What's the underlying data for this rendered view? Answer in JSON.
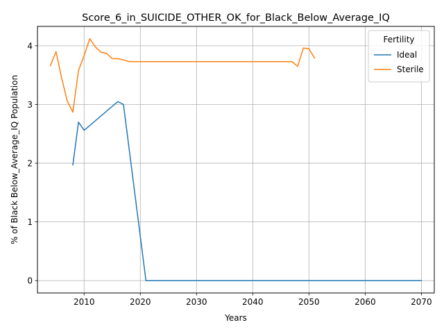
{
  "chart_data": {
    "type": "line",
    "title": "Score_6_in_SUICIDE_OTHER_OK_for_Black_Below_Average_IQ",
    "xlabel": "Years",
    "ylabel": "% of Black Below_Average_IQ Population",
    "xlim": [
      2001.7,
      2072.3
    ],
    "ylim": [
      -0.21,
      4.33
    ],
    "xticks": [
      2010,
      2020,
      2030,
      2040,
      2050,
      2060,
      2070
    ],
    "yticks": [
      0,
      1,
      2,
      3,
      4
    ],
    "grid": true,
    "legend": {
      "title": "Fertility",
      "placement": "top-right"
    },
    "series": [
      {
        "name": "Ideal",
        "color": "#1f77b4",
        "x": [
          2008,
          2009,
          2010,
          2016,
          2017,
          2021,
          2070
        ],
        "y": [
          1.97,
          2.7,
          2.56,
          3.05,
          3.0,
          0.0,
          0.0
        ]
      },
      {
        "name": "Sterile",
        "color": "#ff7f0e",
        "x": [
          2004,
          2005,
          2006,
          2007,
          2008,
          2009,
          2010,
          2011,
          2012,
          2013,
          2014,
          2015,
          2016,
          2017,
          2018,
          2020,
          2025,
          2030,
          2035,
          2040,
          2045,
          2047,
          2048,
          2049,
          2050,
          2051
        ],
        "y": [
          3.66,
          3.9,
          3.45,
          3.06,
          2.87,
          3.58,
          3.83,
          4.12,
          3.98,
          3.89,
          3.87,
          3.78,
          3.78,
          3.76,
          3.73,
          3.73,
          3.73,
          3.73,
          3.73,
          3.73,
          3.73,
          3.73,
          3.65,
          3.96,
          3.95,
          3.79
        ]
      }
    ]
  }
}
